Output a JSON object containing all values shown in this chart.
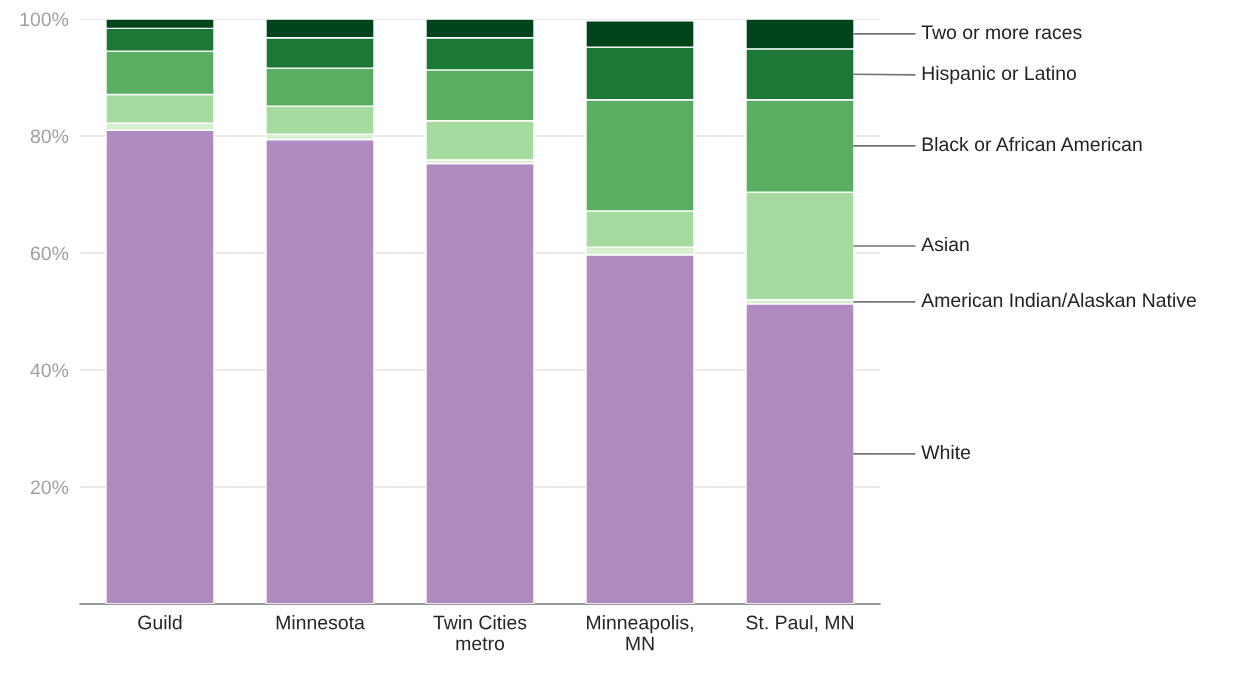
{
  "chart_data": {
    "type": "bar",
    "stacked": true,
    "categories": [
      "Guild",
      "Minnesota",
      "Twin Cities\nmetro",
      "Minneapolis,\nMN",
      "St. Paul, MN"
    ],
    "series": [
      {
        "name": "White",
        "color": "#af8bc1",
        "values": [
          81.0,
          79.4,
          75.3,
          59.7,
          51.3
        ]
      },
      {
        "name": "American Indian/Alaskan Native",
        "color": "#d5efcf",
        "values": [
          1.2,
          0.9,
          0.6,
          1.3,
          0.7
        ]
      },
      {
        "name": "Asian",
        "color": "#a6dba0",
        "values": [
          4.9,
          4.8,
          6.7,
          6.2,
          18.4
        ]
      },
      {
        "name": "Black or African American",
        "color": "#5aae61",
        "values": [
          7.4,
          6.5,
          8.7,
          19.0,
          15.8
        ]
      },
      {
        "name": "Hispanic or Latino",
        "color": "#1b7837",
        "values": [
          3.9,
          5.2,
          5.5,
          9.0,
          8.7
        ]
      },
      {
        "name": "Two or more races",
        "color": "#00441b",
        "values": [
          1.6,
          3.2,
          3.2,
          4.5,
          5.1
        ]
      }
    ],
    "ylim": [
      0,
      100
    ],
    "yticks": [
      {
        "value": 20,
        "label": "20%"
      },
      {
        "value": 40,
        "label": "40%"
      },
      {
        "value": 60,
        "label": "60%"
      },
      {
        "value": 80,
        "label": "80%"
      },
      {
        "value": 100,
        "label": "100%"
      }
    ],
    "grid": "y"
  }
}
